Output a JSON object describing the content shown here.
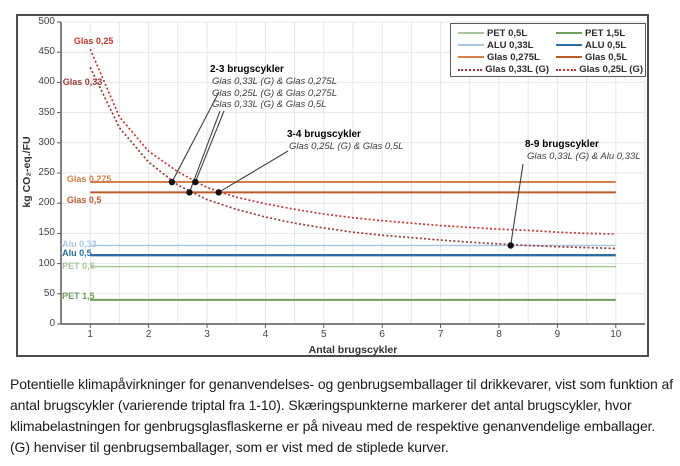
{
  "figure": {
    "caption": "Potentielle klimapåvirkninger for genanvendelses- og genbrugsemballager til drikkevarer, vist som funktion af antal brugscykler (varierende triptal fra 1-10). Skæringspunkterne markerer det antal brugscykler, hvor klimabelastningen for genbrugsglasflaskerne er på niveau med de respektive genanvendelige emballager. (G) henviser til genbrugsemballager, som er vist med de stiplede kurver."
  },
  "chart_data": {
    "type": "line",
    "title": "",
    "xlabel": "Antal brugscykler",
    "ylabel": "kg CO₂-eq./FU",
    "xlim": [
      0.5,
      10.5
    ],
    "ylim": [
      0,
      500
    ],
    "xticks": [
      1,
      2,
      3,
      4,
      5,
      6,
      7,
      8,
      9,
      10
    ],
    "yticks": [
      0,
      50,
      100,
      150,
      200,
      250,
      300,
      350,
      400,
      450,
      500
    ],
    "grid": {
      "horizontal_every": 50,
      "vertical_every": 0.5
    },
    "legend_position": "top-right",
    "style": {
      "axis_color": "#595959",
      "grid_color": "#e4e7ea",
      "marker_color": "#111111",
      "leader_color": "#404040"
    },
    "x": [
      1,
      1.5,
      2,
      2.5,
      3,
      3.5,
      4,
      4.5,
      5,
      5.5,
      6,
      6.5,
      7,
      7.5,
      8,
      8.5,
      9,
      9.5,
      10
    ],
    "series": [
      {
        "id": "pet05",
        "legend_label": "PET 0,5L",
        "chart_label": "PET 0,5",
        "color": "#a8c79c",
        "style": "solid",
        "width": 1.5,
        "value": 95,
        "label_x": 0.52,
        "label_v": 95
      },
      {
        "id": "pet15",
        "legend_label": "PET 1,5L",
        "chart_label": "PET 1,5",
        "color": "#6d9e5c",
        "style": "solid",
        "width": 2,
        "value": 40,
        "label_x": 0.52,
        "label_v": 45
      },
      {
        "id": "alu033",
        "legend_label": "ALU 0,33L",
        "chart_label": "Alu 0,33",
        "color": "#aac7e2",
        "style": "solid",
        "width": 1.5,
        "value": 130,
        "label_x": 0.52,
        "label_v": 132
      },
      {
        "id": "alu05",
        "legend_label": "ALU 0,5L",
        "chart_label": "Alu 0,5",
        "color": "#2e6da4",
        "style": "solid",
        "width": 2.4,
        "value": 114,
        "label_x": 0.52,
        "label_v": 116
      },
      {
        "id": "glas0275",
        "legend_label": "Glas 0,275L",
        "chart_label": "Glas 0,275",
        "color": "#d08048",
        "style": "solid",
        "width": 2,
        "value": 235,
        "label_x": 0.6,
        "label_v": 240
      },
      {
        "id": "glas05",
        "legend_label": "Glas 0,5L",
        "chart_label": "Glas 0,5",
        "color": "#bd5b2b",
        "style": "solid",
        "width": 2,
        "value": 218,
        "label_x": 0.6,
        "label_v": 205
      },
      {
        "id": "glas033g",
        "legend_label": "Glas 0,33L (G)",
        "chart_label": "Glas 0,33",
        "color": "#9b3a36",
        "style": "dotted",
        "width": 1.7,
        "label_x": 0.53,
        "label_v": 400,
        "values": [
          425,
          325,
          268,
          230,
          206,
          190,
          177,
          167,
          159,
          152,
          147,
          143,
          139,
          135.5,
          132.5,
          130,
          128,
          126.5,
          125
        ]
      },
      {
        "id": "glas025g",
        "legend_label": "Glas 0,25L (G)",
        "chart_label": "Glas 0,25",
        "color": "#c43a30",
        "style": "dotted",
        "width": 1.7,
        "label_x": 0.72,
        "label_v": 468,
        "values": [
          455,
          343,
          286,
          252,
          226,
          210,
          199,
          190,
          182,
          176,
          171,
          167,
          163,
          160,
          157,
          155,
          152,
          150,
          149
        ]
      }
    ],
    "markers": [
      {
        "x": 2.4,
        "v": 235,
        "series": "glas033g",
        "crosses": "glas0275"
      },
      {
        "x": 2.8,
        "v": 235,
        "series": "glas025g",
        "crosses": "glas0275"
      },
      {
        "x": 2.7,
        "v": 218,
        "series": "glas033g",
        "crosses": "glas05"
      },
      {
        "x": 3.2,
        "v": 218,
        "series": "glas025g",
        "crosses": "glas05"
      },
      {
        "x": 8.2,
        "v": 130,
        "series": "glas033g",
        "crosses": "alu033"
      }
    ],
    "annotations": [
      {
        "title": "2-3 brugscykler",
        "lines": [
          "Glas 0,33L (G) & Glas 0,275L",
          "Glas 0,25L (G) & Glas 0,275L",
          "Glas 0,33L (G) & Glas 0,5L"
        ]
      },
      {
        "title": "3-4 brugscykler",
        "lines": [
          "Glas 0,25L (G) & Glas 0,5L"
        ]
      },
      {
        "title": "8-9 brugscykler",
        "lines": [
          "Glas 0,33L (G) & Alu 0,33L"
        ]
      }
    ]
  }
}
